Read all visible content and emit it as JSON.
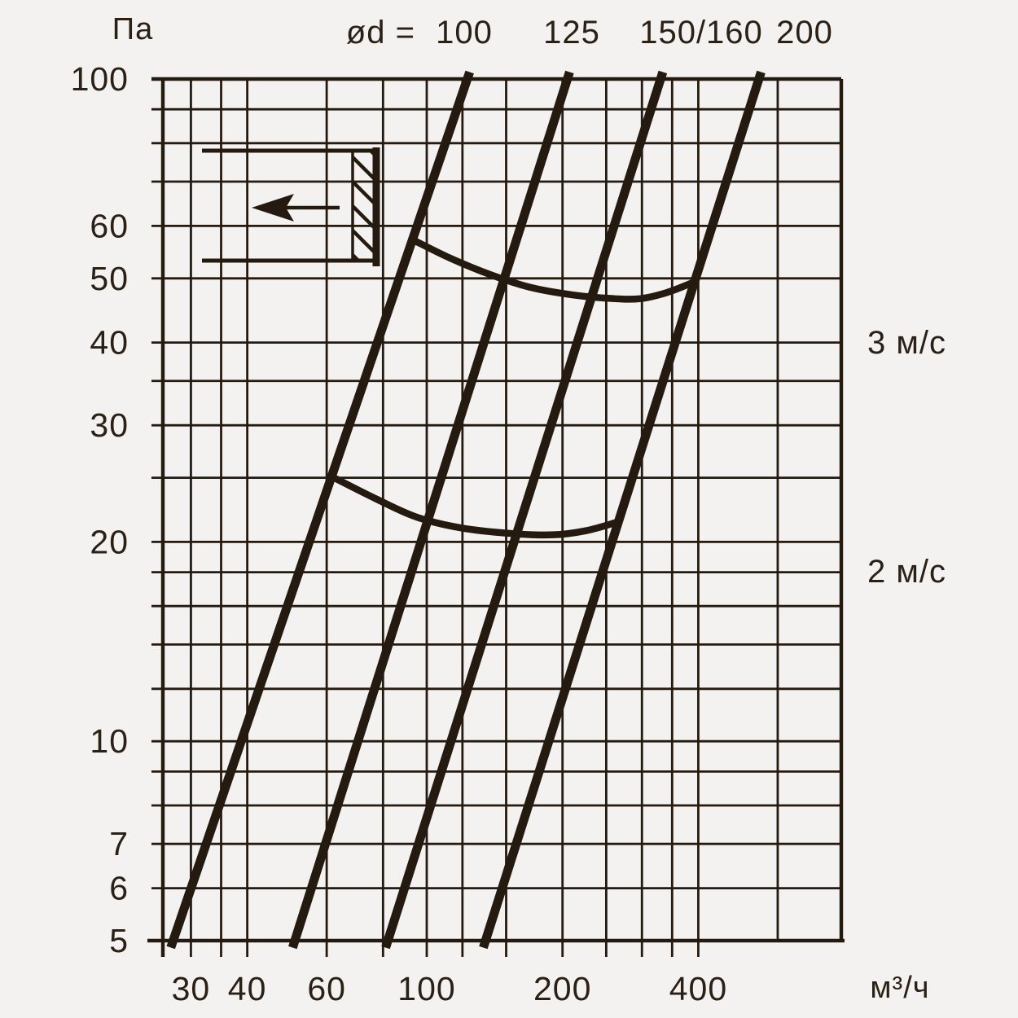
{
  "page": {
    "background": "#f3f2f0"
  },
  "chart_data": {
    "type": "line",
    "title": "",
    "description": "Log-log diagram of pressure drop (Па) versus air flow (м³/ч) for round duct diameters, with air velocity reference curves and a duct grille inset symbol",
    "x_axis": {
      "unit": "м³/ч",
      "scale": "log",
      "min": 26,
      "max": 830,
      "gridlines": [
        30,
        35,
        40,
        60,
        80,
        100,
        120,
        150,
        200,
        250,
        300,
        350,
        400,
        600
      ],
      "labeled_ticks": [
        30,
        40,
        60,
        100,
        200,
        400
      ]
    },
    "y_axis": {
      "unit": "Па",
      "scale": "log",
      "min": 5,
      "max": 100,
      "gridlines": [
        5,
        6,
        7,
        8,
        9,
        10,
        12,
        14,
        16,
        18,
        20,
        25,
        30,
        35,
        40,
        50,
        60,
        70,
        80,
        90,
        100
      ],
      "labeled_ticks": [
        5,
        6,
        7,
        10,
        20,
        30,
        40,
        50,
        60,
        100
      ]
    },
    "diameter_prefix_label": "ød =",
    "series": [
      {
        "name": "ød = 100",
        "label": "100",
        "points_q_pa": [
          [
            27.4,
            5
          ],
          [
            123,
            100
          ]
        ]
      },
      {
        "name": "ød = 125",
        "label": "125",
        "points_q_pa": [
          [
            51,
            5
          ],
          [
            205,
            100
          ]
        ]
      },
      {
        "name": "ød = 150/160",
        "label": "150/160",
        "points_q_pa": [
          [
            82,
            5
          ],
          [
            330,
            100
          ]
        ]
      },
      {
        "name": "ød = 200",
        "label": "200",
        "points_q_pa": [
          [
            135,
            5
          ],
          [
            545,
            100
          ]
        ]
      }
    ],
    "velocity_curves": [
      {
        "label": "3 м/с",
        "points_q_pa": [
          [
            94,
            57
          ],
          [
            113,
            53.6
          ],
          [
            139,
            50.6
          ],
          [
            171,
            48.4
          ],
          [
            211,
            47.2
          ],
          [
            259,
            46.6
          ],
          [
            298,
            46.6
          ],
          [
            341,
            47.6
          ],
          [
            387,
            49.2
          ]
        ]
      },
      {
        "label": "2 м/с",
        "points_q_pa": [
          [
            63,
            24.9
          ],
          [
            77.5,
            23.2
          ],
          [
            95,
            21.8
          ],
          [
            119,
            21
          ],
          [
            153,
            20.6
          ],
          [
            191,
            20.5
          ],
          [
            226,
            20.8
          ],
          [
            263,
            21.4
          ]
        ]
      }
    ],
    "colors": {
      "ink": "#241a10",
      "text": "#2b2016",
      "background": "#f3f2f0"
    }
  },
  "inset_symbol": {
    "meaning": "duct opening with grille, air flow direction",
    "arrow_direction": "left"
  }
}
